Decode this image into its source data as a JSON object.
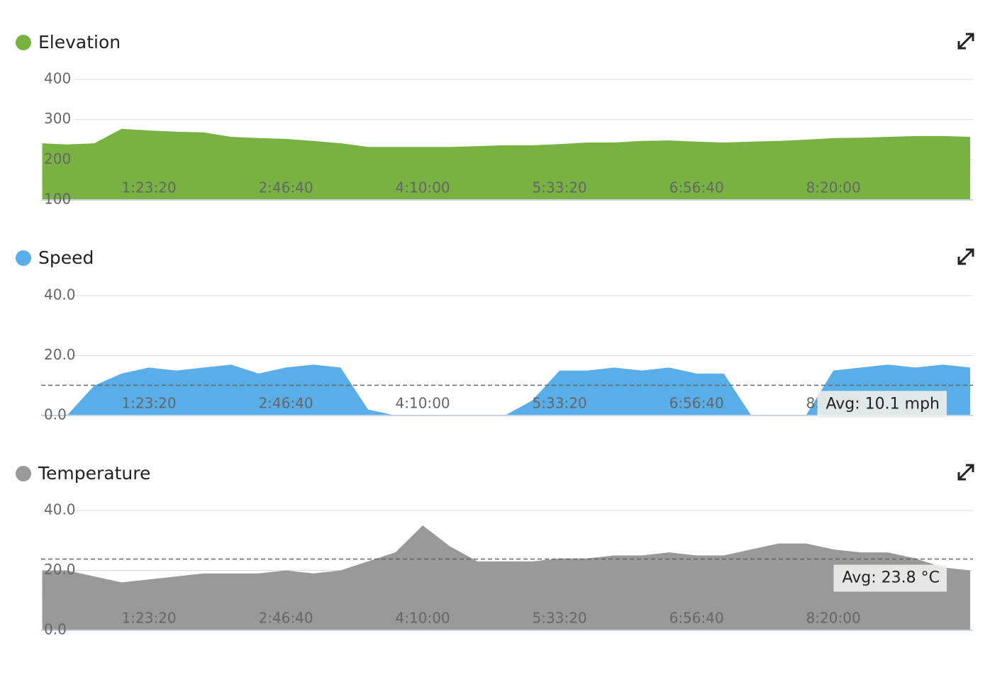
{
  "chart_data": [
    {
      "type": "area",
      "title": "Elevation",
      "color": "#77b243",
      "x": [
        1100,
        2000,
        3000,
        4000,
        5000,
        6000,
        7000,
        8000,
        9000,
        10000,
        11000,
        12000,
        13000,
        14000,
        15000,
        16000,
        17000,
        18000,
        19000,
        20000,
        21000,
        22000,
        23000,
        24000,
        25000,
        26000,
        27000,
        28000,
        29000,
        30000,
        31000,
        32000,
        33000,
        34000,
        35000
      ],
      "values": [
        241,
        238,
        241,
        277,
        273,
        270,
        268,
        257,
        254,
        252,
        247,
        241,
        232,
        232,
        232,
        232,
        234,
        236,
        236,
        239,
        243,
        243,
        247,
        248,
        245,
        243,
        245,
        247,
        250,
        254,
        255,
        257,
        259,
        259,
        257
      ],
      "xlim": [
        1060,
        35100
      ],
      "ylim": [
        100,
        400
      ],
      "xticks": [
        {
          "value": 5000,
          "label": "1:23:20"
        },
        {
          "value": 10000,
          "label": "2:46:40"
        },
        {
          "value": 15000,
          "label": "4:10:00"
        },
        {
          "value": 20000,
          "label": "5:33:20"
        },
        {
          "value": 25000,
          "label": "6:56:40"
        },
        {
          "value": 30000,
          "label": "8:20:00"
        }
      ],
      "yticks": [
        100,
        200,
        300,
        400
      ]
    },
    {
      "type": "area",
      "title": "Speed",
      "color": "#5aaee8",
      "x": [
        1100,
        2000,
        3000,
        4000,
        5000,
        6000,
        7000,
        8000,
        9000,
        10000,
        11000,
        12000,
        13000,
        14000,
        15000,
        16000,
        17000,
        18000,
        19000,
        20000,
        21000,
        22000,
        23000,
        24000,
        25000,
        26000,
        27000,
        28000,
        29000,
        30000,
        31000,
        32000,
        33000,
        34000,
        35000
      ],
      "values": [
        0,
        0,
        10,
        14,
        16,
        15,
        16,
        17,
        14,
        16,
        17,
        16,
        2,
        0,
        0,
        0,
        0,
        0,
        5,
        15,
        15,
        16,
        15,
        16,
        14,
        14,
        0,
        0,
        0,
        15,
        16,
        17,
        16,
        17,
        16
      ],
      "xlim": [
        1060,
        35100
      ],
      "ylim": [
        0,
        40
      ],
      "xticks": [
        {
          "value": 5000,
          "label": "1:23:20"
        },
        {
          "value": 10000,
          "label": "2:46:40"
        },
        {
          "value": 15000,
          "label": "4:10:00"
        },
        {
          "value": 20000,
          "label": "5:33:20"
        },
        {
          "value": 25000,
          "label": "6:56:40"
        },
        {
          "value": 30000,
          "label": "8:20:00"
        }
      ],
      "yticks": [
        {
          "value": 0,
          "label": "0.0"
        },
        {
          "value": 20,
          "label": "20.0"
        },
        {
          "value": 40,
          "label": "40.0"
        }
      ],
      "avg": 10.1,
      "avg_label": "Avg: 10.1 mph"
    },
    {
      "type": "area",
      "title": "Temperature",
      "color": "#999999",
      "x": [
        1100,
        2000,
        3000,
        4000,
        5000,
        6000,
        7000,
        8000,
        9000,
        10000,
        11000,
        12000,
        13000,
        14000,
        15000,
        16000,
        17000,
        18000,
        19000,
        20000,
        21000,
        22000,
        23000,
        24000,
        25000,
        26000,
        27000,
        28000,
        29000,
        30000,
        31000,
        32000,
        33000,
        34000,
        35000
      ],
      "values": [
        20,
        20,
        18,
        16,
        17,
        18,
        19,
        19,
        19,
        20,
        19,
        20,
        23,
        26,
        35,
        28,
        23,
        23,
        23,
        24,
        24,
        25,
        25,
        26,
        25,
        25,
        27,
        29,
        29,
        27,
        26,
        26,
        24,
        21,
        20
      ],
      "xlim": [
        1060,
        35100
      ],
      "ylim": [
        0,
        40
      ],
      "xticks": [
        {
          "value": 5000,
          "label": "1:23:20"
        },
        {
          "value": 10000,
          "label": "2:46:40"
        },
        {
          "value": 15000,
          "label": "4:10:00"
        },
        {
          "value": 20000,
          "label": "5:33:20"
        },
        {
          "value": 25000,
          "label": "6:56:40"
        },
        {
          "value": 30000,
          "label": "8:20:00"
        }
      ],
      "yticks": [
        {
          "value": 0,
          "label": "0.0"
        },
        {
          "value": 20,
          "label": "20.0"
        },
        {
          "value": 40,
          "label": "40.0"
        }
      ],
      "avg": 23.8,
      "avg_label": "Avg: 23.8 °C"
    }
  ]
}
